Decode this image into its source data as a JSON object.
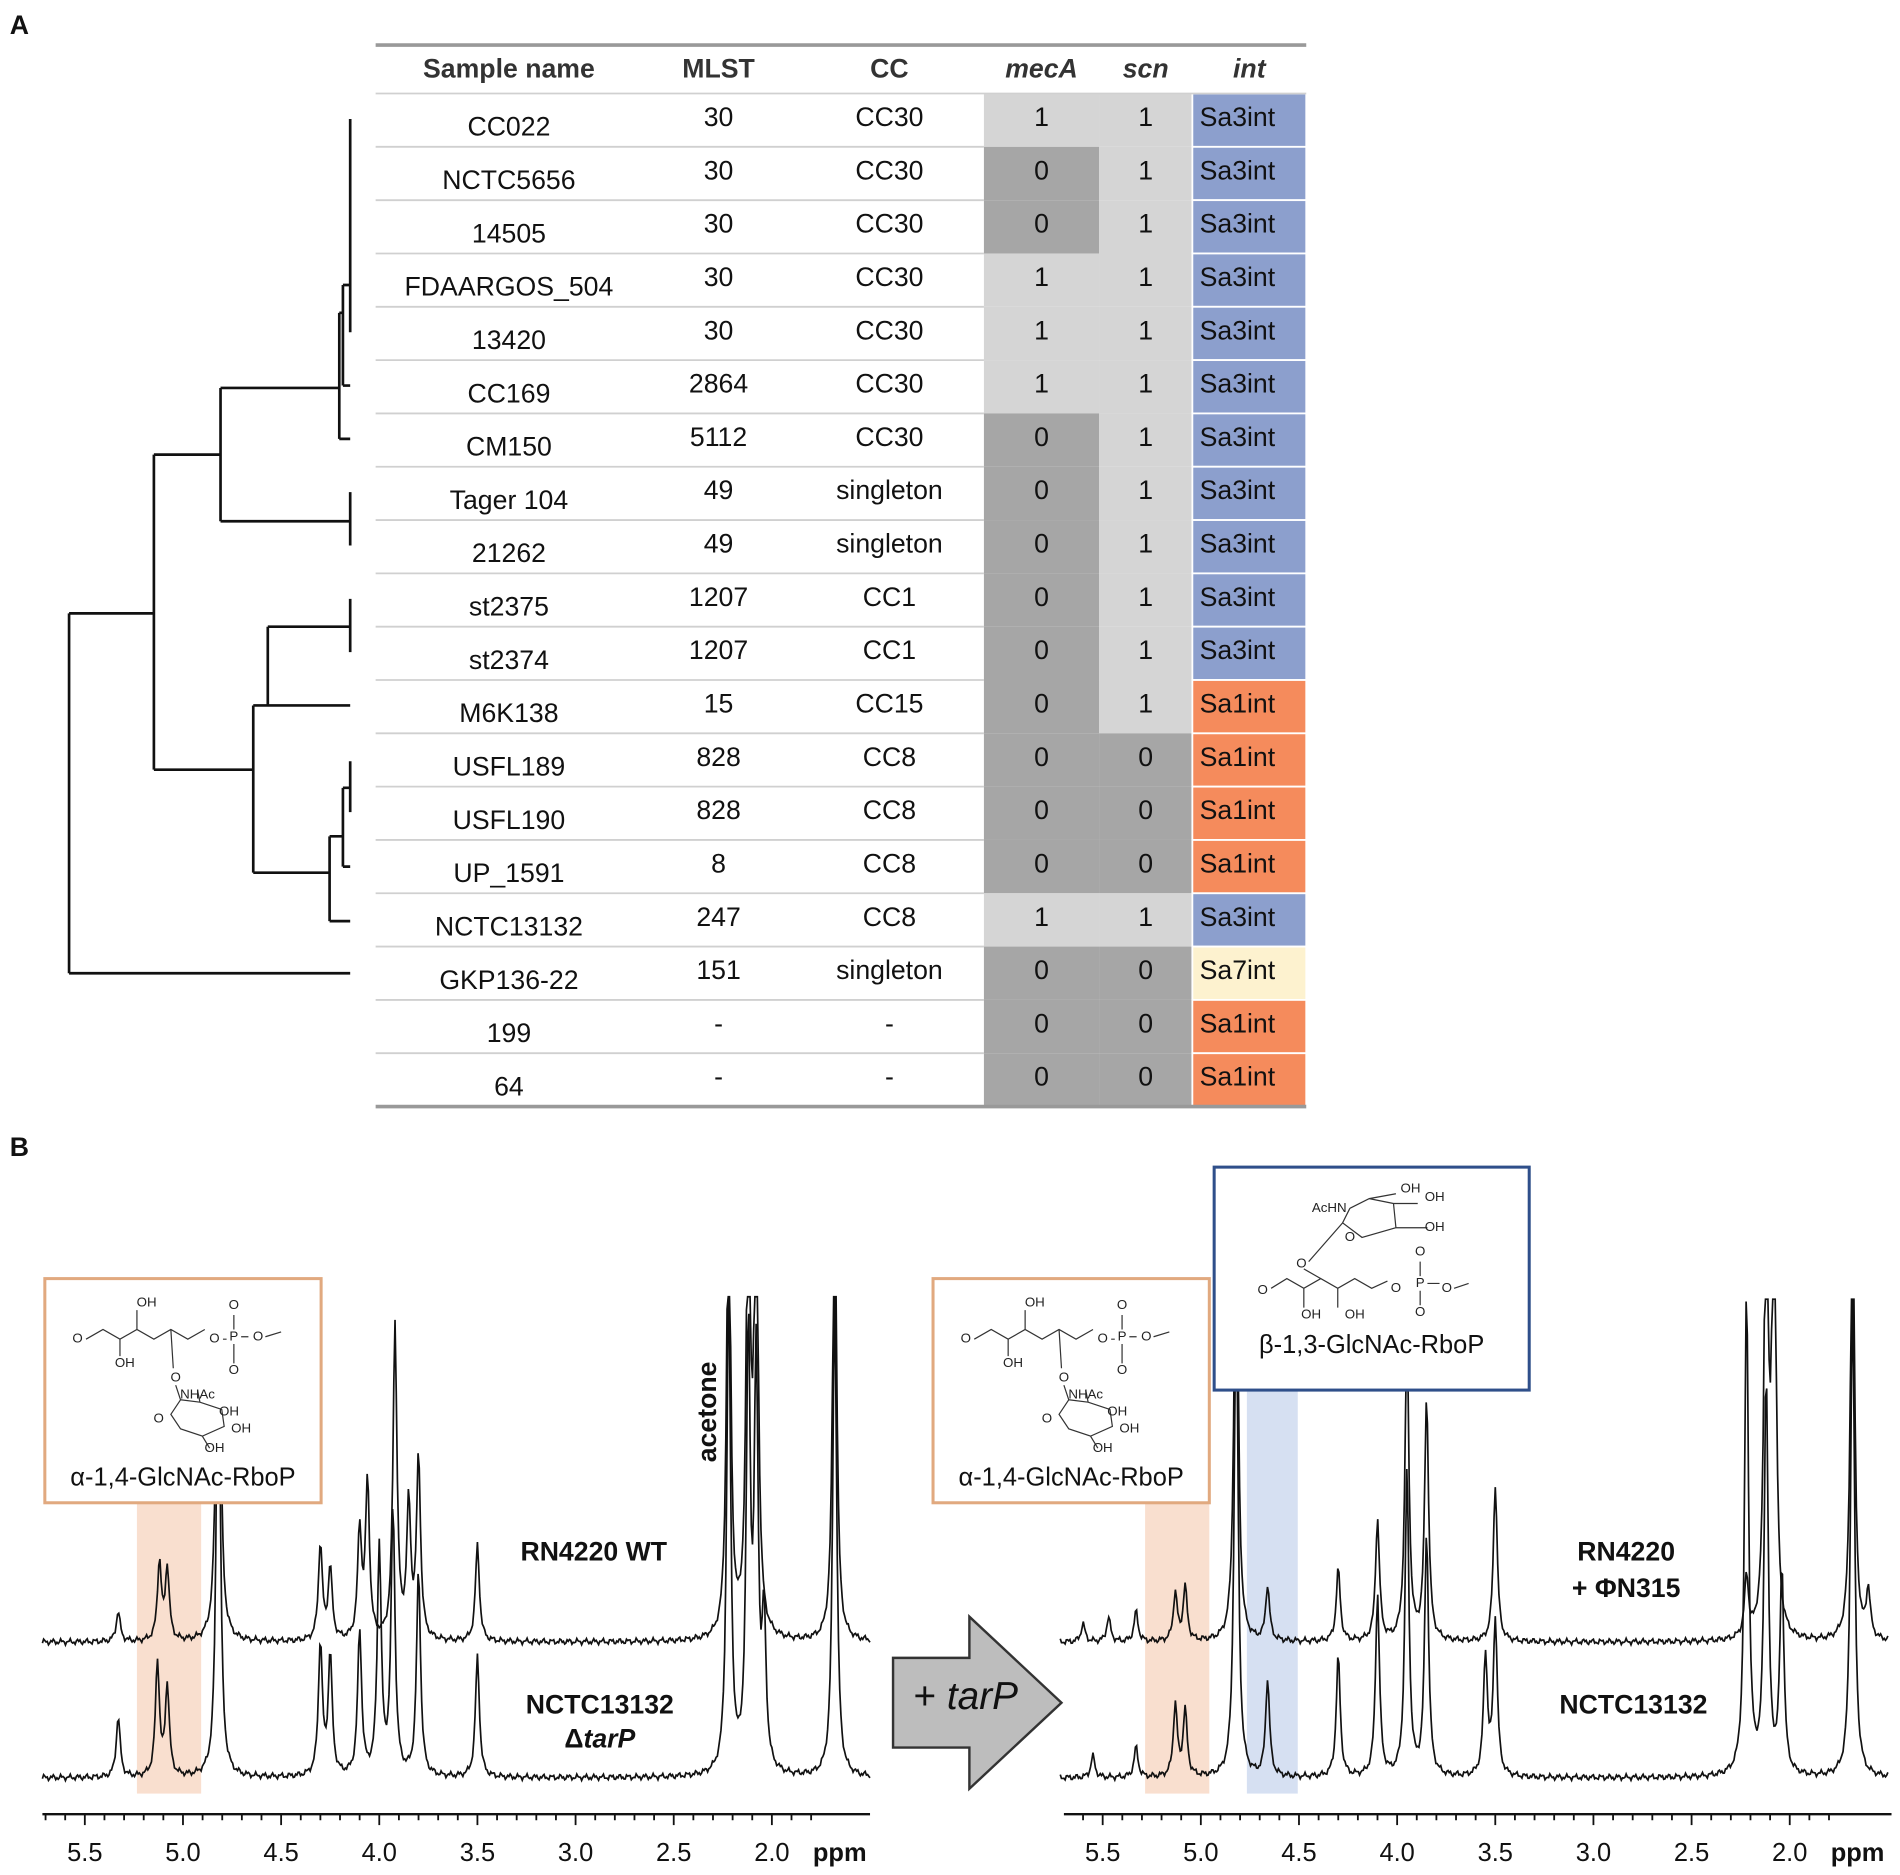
{
  "panel_a": {
    "label": "A",
    "headers": [
      "Sample name",
      "MLST",
      "CC",
      "mecA",
      "scn",
      "int"
    ],
    "rows": [
      [
        "CC022",
        30,
        "CC30",
        1,
        1,
        "Sa3int"
      ],
      [
        "NCTC5656",
        30,
        "CC30",
        0,
        1,
        "Sa3int"
      ],
      [
        "14505",
        30,
        "CC30",
        0,
        1,
        "Sa3int"
      ],
      [
        "FDAARGOS_504",
        30,
        "CC30",
        1,
        1,
        "Sa3int"
      ],
      [
        "13420",
        30,
        "CC30",
        1,
        1,
        "Sa3int"
      ],
      [
        "CC169",
        2864,
        "CC30",
        1,
        1,
        "Sa3int"
      ],
      [
        "CM150",
        5112,
        "CC30",
        0,
        1,
        "Sa3int"
      ],
      [
        "Tager 104",
        49,
        "singleton",
        0,
        1,
        "Sa3int"
      ],
      [
        "21262",
        49,
        "singleton",
        0,
        1,
        "Sa3int"
      ],
      [
        "st2375",
        1207,
        "CC1",
        0,
        1,
        "Sa3int"
      ],
      [
        "st2374",
        1207,
        "CC1",
        0,
        1,
        "Sa3int"
      ],
      [
        "M6K138",
        15,
        "CC15",
        0,
        1,
        "Sa1int"
      ],
      [
        "USFL189",
        828,
        "CC8",
        0,
        0,
        "Sa1int"
      ],
      [
        "USFL190",
        828,
        "CC8",
        0,
        0,
        "Sa1int"
      ],
      [
        "UP_1591",
        8,
        "CC8",
        0,
        0,
        "Sa1int"
      ],
      [
        "NCTC13132",
        247,
        "CC8",
        1,
        1,
        "Sa3int"
      ],
      [
        "GKP136-22",
        151,
        "singleton",
        0,
        0,
        "Sa7int"
      ],
      [
        "199",
        "-",
        "-",
        0,
        0,
        "Sa1int"
      ],
      [
        "64",
        "-",
        "-",
        0,
        0,
        "Sa1int"
      ]
    ],
    "int_colors": {
      "Sa3int": "#8c9fcd",
      "Sa1int": "#f58b5c",
      "Sa7int": "#fdf2cf"
    }
  },
  "panel_b": {
    "label": "B",
    "left": {
      "top_label": "RN4220 WT",
      "bottom_label": [
        "NCTC13132",
        "Δ",
        "tarP"
      ],
      "annotation": "acetone"
    },
    "arrow_label": [
      "+ ",
      "tarP"
    ],
    "right": {
      "top_label": [
        "RN4220",
        "+ ΦN315"
      ],
      "bottom_label": "NCTC13132"
    },
    "axis_ticks": [
      "5.5",
      "5.0",
      "4.5",
      "4.0",
      "3.5",
      "3.0",
      "2.5",
      "2.0"
    ],
    "axis_unit": "ppm",
    "alpha": {
      "name": "α-1,4-GlcNAc-RboP",
      "atoms": [
        "O",
        "OH",
        "OH",
        "O",
        "P",
        "O",
        "O",
        "O",
        "O",
        "NHAc",
        "O",
        "OH",
        "OH",
        "OH"
      ]
    },
    "beta": {
      "name": "β-1,3-GlcNAc-RboP",
      "atoms": [
        "AcHN",
        "OH",
        "OH",
        "O",
        "OH",
        "O",
        "O",
        "OH",
        "OH",
        "O",
        "P",
        "O",
        "O",
        "O"
      ]
    }
  }
}
